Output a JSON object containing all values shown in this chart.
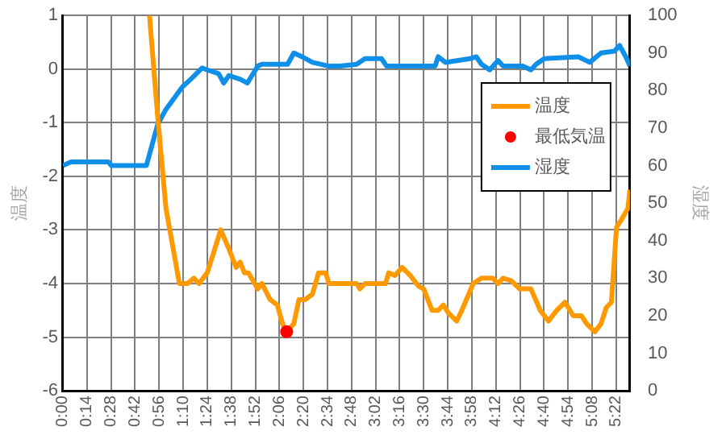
{
  "chart_data": {
    "type": "line",
    "ylabel": "温度",
    "y2label": "湿度",
    "xlim": [
      0,
      5.5
    ],
    "ylim": [
      -6,
      1
    ],
    "y2lim": [
      0,
      100
    ],
    "xticks": [
      {
        "value": 0,
        "label": "0:00"
      },
      {
        "value": 0.2333,
        "label": "0:14"
      },
      {
        "value": 0.4667,
        "label": "0:28"
      },
      {
        "value": 0.7,
        "label": "0:42"
      },
      {
        "value": 0.9333,
        "label": "0:56"
      },
      {
        "value": 1.1667,
        "label": "1:10"
      },
      {
        "value": 1.4,
        "label": "1:24"
      },
      {
        "value": 1.6333,
        "label": "1:38"
      },
      {
        "value": 1.8667,
        "label": "1:52"
      },
      {
        "value": 2.1,
        "label": "2:06"
      },
      {
        "value": 2.3333,
        "label": "2:20"
      },
      {
        "value": 2.5667,
        "label": "2:34"
      },
      {
        "value": 2.8,
        "label": "2:48"
      },
      {
        "value": 3.0333,
        "label": "3:02"
      },
      {
        "value": 3.2667,
        "label": "3:16"
      },
      {
        "value": 3.5,
        "label": "3:30"
      },
      {
        "value": 3.7333,
        "label": "3:44"
      },
      {
        "value": 3.9667,
        "label": "3:58"
      },
      {
        "value": 4.2,
        "label": "4:12"
      },
      {
        "value": 4.4333,
        "label": "4:26"
      },
      {
        "value": 4.6667,
        "label": "4:40"
      },
      {
        "value": 4.9,
        "label": "4:54"
      },
      {
        "value": 5.1333,
        "label": "5:08"
      },
      {
        "value": 5.3667,
        "label": "5:22"
      }
    ],
    "yticks": [
      -6,
      -5,
      -4,
      -3,
      -2,
      -1,
      0,
      1
    ],
    "y2ticks": [
      0,
      10,
      20,
      30,
      40,
      50,
      60,
      70,
      80,
      90,
      100
    ],
    "grid": true,
    "legend": "right",
    "series": [
      {
        "name": "温度",
        "type": "line",
        "marker": "none",
        "color": "#ff9900",
        "x": [
          0.84,
          0.92,
          1.0,
          1.13,
          1.21,
          1.27,
          1.32,
          1.4,
          1.45,
          1.53,
          1.61,
          1.68,
          1.72,
          1.76,
          1.8,
          1.89,
          1.93,
          2.01,
          2.08,
          2.13,
          2.17,
          2.24,
          2.29,
          2.35,
          2.42,
          2.48,
          2.55,
          2.58,
          2.69,
          2.85,
          2.88,
          2.93,
          3.13,
          3.16,
          3.22,
          3.29,
          3.37,
          3.45,
          3.5,
          3.58,
          3.64,
          3.69,
          3.74,
          3.82,
          3.87,
          3.98,
          4.06,
          4.17,
          4.22,
          4.27,
          4.35,
          4.43,
          4.54,
          4.63,
          4.71,
          4.79,
          4.87,
          4.95,
          5.03,
          5.08,
          5.16,
          5.22,
          5.27,
          5.32,
          5.37,
          5.42,
          5.48,
          5.5
        ],
        "values": [
          1,
          -0.9,
          -2.6,
          -4.0,
          -4.0,
          -3.9,
          -4.0,
          -3.8,
          -3.5,
          -3.0,
          -3.35,
          -3.7,
          -3.6,
          -3.8,
          -3.8,
          -4.1,
          -4.0,
          -4.3,
          -4.4,
          -4.75,
          -4.9,
          -4.75,
          -4.3,
          -4.3,
          -4.2,
          -3.8,
          -3.8,
          -4.0,
          -4.0,
          -4.0,
          -4.1,
          -4.0,
          -4.0,
          -3.8,
          -3.85,
          -3.7,
          -3.85,
          -4.05,
          -4.1,
          -4.5,
          -4.5,
          -4.4,
          -4.55,
          -4.7,
          -4.5,
          -4.0,
          -3.9,
          -3.9,
          -4.0,
          -3.9,
          -3.95,
          -4.1,
          -4.1,
          -4.5,
          -4.7,
          -4.5,
          -4.35,
          -4.6,
          -4.6,
          -4.75,
          -4.9,
          -4.75,
          -4.45,
          -4.35,
          -2.95,
          -2.8,
          -2.6,
          -2.25
        ]
      },
      {
        "name": "最低気温",
        "type": "scatter",
        "marker": "circle",
        "color": "#ff0000",
        "x": [
          2.17
        ],
        "values": [
          -4.9
        ]
      },
      {
        "name": "湿度",
        "type": "line",
        "marker": "none",
        "axis": "y2",
        "color": "#0f8fe8",
        "x": [
          0,
          0.08,
          0.44,
          0.47,
          0.81,
          0.92,
          1.0,
          1.08,
          1.16,
          1.24,
          1.35,
          1.4,
          1.51,
          1.56,
          1.61,
          1.72,
          1.79,
          1.89,
          1.93,
          2.18,
          2.24,
          2.32,
          2.42,
          2.58,
          2.69,
          2.85,
          2.93,
          3.09,
          3.14,
          3.61,
          3.64,
          3.71,
          3.95,
          4.01,
          4.06,
          4.14,
          4.22,
          4.27,
          4.46,
          4.54,
          4.59,
          4.67,
          5.0,
          5.11,
          5.22,
          5.35,
          5.4,
          5.46,
          5.5
        ],
        "values": [
          60,
          61,
          61,
          60,
          60,
          71,
          75,
          78,
          81,
          83,
          86,
          85.5,
          84.5,
          82,
          84,
          83,
          82,
          86.5,
          87,
          87,
          90,
          89,
          87.5,
          86.5,
          86.5,
          87,
          88.5,
          88.5,
          86.5,
          86.5,
          89,
          87.5,
          88.5,
          89,
          87,
          85.5,
          88,
          86.5,
          86.5,
          85.5,
          87,
          88.5,
          89,
          87.5,
          90,
          90.5,
          92,
          89,
          86.5
        ]
      }
    ]
  }
}
